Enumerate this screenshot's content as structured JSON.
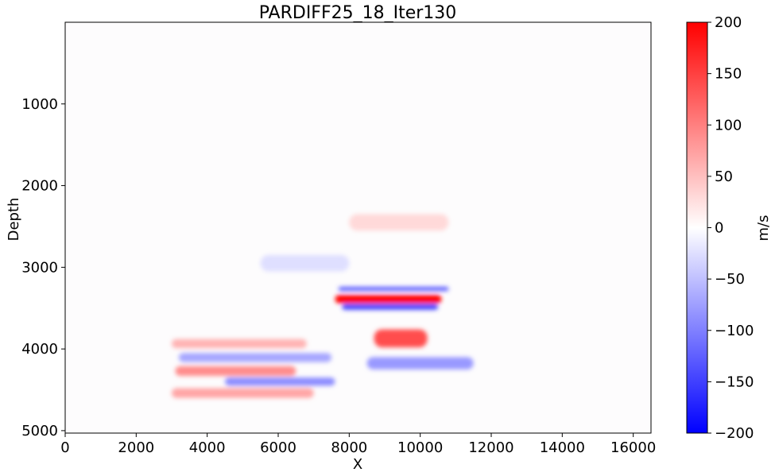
{
  "chart_data": {
    "type": "heatmap",
    "title": "PARDIFF25_18_Iter130",
    "xlabel": "X",
    "ylabel": "Depth",
    "xlim": [
      0,
      16500
    ],
    "ylim": [
      5030,
      0
    ],
    "y_inverted": true,
    "xticks": [
      0,
      2000,
      4000,
      6000,
      8000,
      10000,
      12000,
      14000,
      16000
    ],
    "yticks": [
      1000,
      2000,
      3000,
      4000,
      5000
    ],
    "colormap": "bwr",
    "colorbar": {
      "label": "m/s",
      "range": [
        -200,
        200
      ],
      "ticks": [
        200,
        150,
        100,
        50,
        0,
        -50,
        -100,
        -150,
        -200
      ],
      "tick_labels": [
        "200",
        "150",
        "100",
        "50",
        "0",
        "−50",
        "−100",
        "−150",
        "−200"
      ]
    },
    "features": [
      {
        "x": [
          7600,
          10600
        ],
        "depth": [
          3340,
          3440
        ],
        "value": 200
      },
      {
        "x": [
          7700,
          10800
        ],
        "depth": [
          3240,
          3290
        ],
        "value": -130
      },
      {
        "x": [
          7800,
          10500
        ],
        "depth": [
          3450,
          3520
        ],
        "value": -150
      },
      {
        "x": [
          8700,
          10200
        ],
        "depth": [
          3760,
          3980
        ],
        "value": 140
      },
      {
        "x": [
          3000,
          6800
        ],
        "depth": [
          3880,
          3990
        ],
        "value": 60
      },
      {
        "x": [
          3100,
          6500
        ],
        "depth": [
          4210,
          4330
        ],
        "value": 90
      },
      {
        "x": [
          3000,
          7000
        ],
        "depth": [
          4480,
          4600
        ],
        "value": 70
      },
      {
        "x": [
          3200,
          7500
        ],
        "depth": [
          4050,
          4160
        ],
        "value": -70
      },
      {
        "x": [
          4500,
          7600
        ],
        "depth": [
          4350,
          4450
        ],
        "value": -90
      },
      {
        "x": [
          8500,
          11500
        ],
        "depth": [
          4100,
          4250
        ],
        "value": -80
      },
      {
        "x": [
          8000,
          10800
        ],
        "depth": [
          2350,
          2550
        ],
        "value": 30
      },
      {
        "x": [
          5500,
          8000
        ],
        "depth": [
          2850,
          3050
        ],
        "value": -25
      }
    ]
  }
}
